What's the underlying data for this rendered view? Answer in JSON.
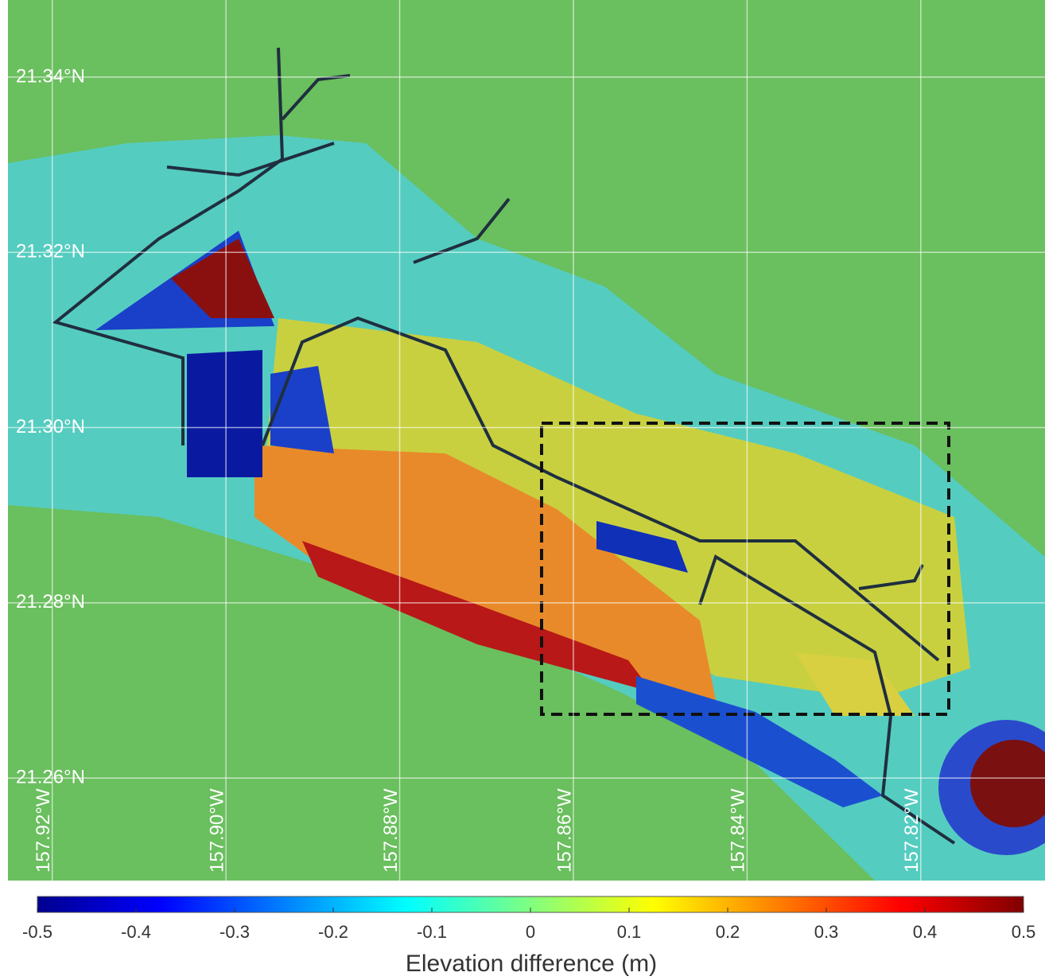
{
  "map": {
    "xlim": [
      -157.9251,
      -157.8057
    ],
    "ylim": [
      21.2483,
      21.3488
    ],
    "lat_ticks": [
      {
        "value": 21.34,
        "label": "21.34°N"
      },
      {
        "value": 21.32,
        "label": "21.32°N"
      },
      {
        "value": 21.3,
        "label": "21.30°N"
      },
      {
        "value": 21.28,
        "label": "21.28°N"
      },
      {
        "value": 21.26,
        "label": "21.26°N"
      }
    ],
    "lon_ticks": [
      {
        "value": -157.92,
        "label": "157.92°W"
      },
      {
        "value": -157.9,
        "label": "157.90°W"
      },
      {
        "value": -157.88,
        "label": "157.88°W"
      },
      {
        "value": -157.86,
        "label": "157.86°W"
      },
      {
        "value": -157.84,
        "label": "157.84°W"
      },
      {
        "value": -157.82,
        "label": "157.82°W"
      }
    ]
  },
  "colorbar": {
    "lim": [
      -0.5,
      0.5
    ],
    "ticks": [
      -0.5,
      -0.4,
      -0.3,
      -0.2,
      -0.1,
      0,
      0.1,
      0.2,
      0.3,
      0.4,
      0.5
    ],
    "label": "Elevation difference (m)",
    "colors": [
      "#00008f",
      "#0000ff",
      "#0080ff",
      "#00ffff",
      "#80ff80",
      "#ffff00",
      "#ff8000",
      "#ff0000",
      "#800000"
    ]
  }
}
